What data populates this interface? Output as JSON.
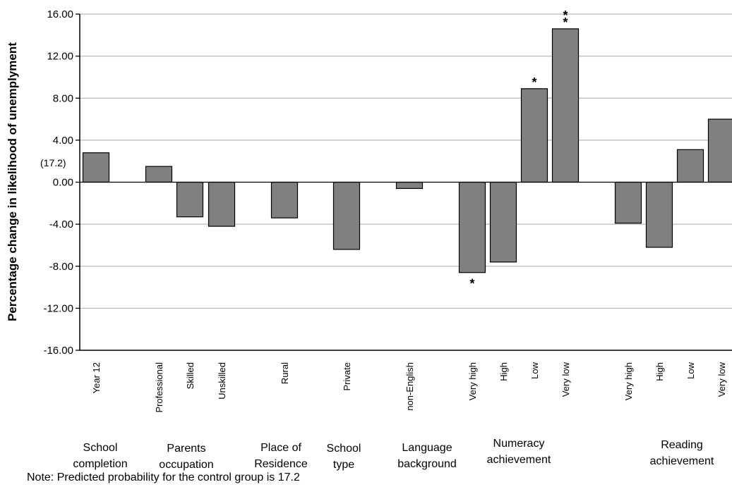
{
  "chart_data": {
    "type": "bar",
    "ylabel": "Percentage change in likelihood of unemplyment",
    "ylim": [
      -16,
      16
    ],
    "yticks": [
      "-16.00",
      "-12.00",
      "-8.00",
      "-4.00",
      "0.00",
      "4.00",
      "8.00",
      "12.00",
      "16.00"
    ],
    "ytick_values": [
      -16,
      -12,
      -8,
      -4,
      0,
      4,
      8,
      12,
      16
    ],
    "grid": true,
    "bar_color": "#808080",
    "control_annotation": "(17.2)",
    "categories": [
      "Year 12",
      "Professional",
      "Skilled",
      "Unskilled",
      "Rural",
      "Private",
      "non-English",
      "Very high",
      "High",
      "Low",
      "Very low",
      "Very high",
      "High",
      "Low",
      "Very low"
    ],
    "values": [
      2.8,
      1.5,
      -3.3,
      -4.2,
      -3.4,
      -6.4,
      -0.6,
      -8.6,
      -7.6,
      8.9,
      14.6,
      -3.9,
      -6.2,
      3.1,
      6.0
    ],
    "significance": [
      "",
      "",
      "",
      "",
      "",
      "",
      "",
      "*",
      "",
      "*",
      "**",
      "",
      "",
      "",
      ""
    ],
    "groups": [
      {
        "label": [
          "School",
          "completion"
        ],
        "members": [
          0
        ]
      },
      {
        "label": [
          "Parents",
          "occupation"
        ],
        "members": [
          1,
          2,
          3
        ]
      },
      {
        "label": [
          "Place of",
          "Residence"
        ],
        "members": [
          4
        ]
      },
      {
        "label": [
          "School",
          "type"
        ],
        "members": [
          5
        ]
      },
      {
        "label": [
          "Language",
          "background"
        ],
        "members": [
          6
        ]
      },
      {
        "label": [
          "Numeracy",
          "achievement"
        ],
        "members": [
          7,
          8,
          9,
          10
        ]
      },
      {
        "label": [
          "Reading",
          "achievement"
        ],
        "members": [
          11,
          12,
          13,
          14
        ]
      }
    ],
    "note": "Note:  Predicted probability for the control group is 17.2"
  }
}
